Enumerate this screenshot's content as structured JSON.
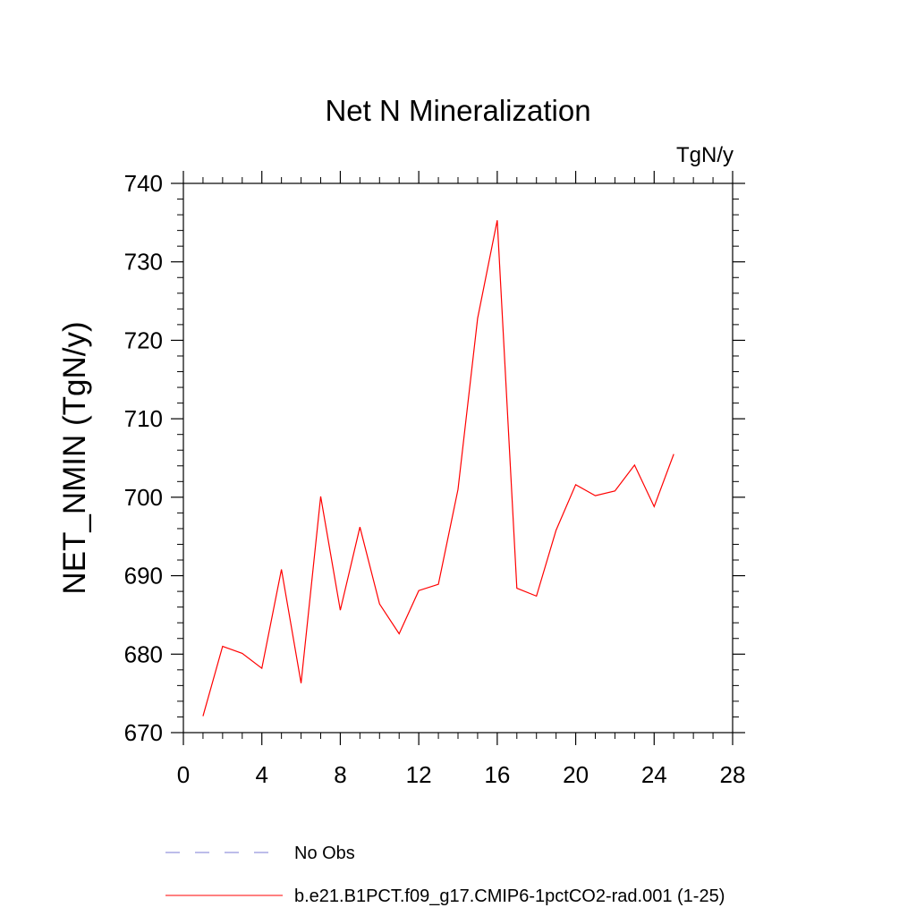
{
  "chart_data": {
    "type": "line",
    "title": "Net N Mineralization",
    "units_label": "TgN/y",
    "xlabel": "",
    "ylabel": "NET_NMIN  (TgN/y)",
    "xlim": [
      0,
      28
    ],
    "ylim": [
      670,
      740
    ],
    "x_ticks": [
      0,
      4,
      8,
      12,
      16,
      20,
      24,
      28
    ],
    "y_ticks": [
      670,
      680,
      690,
      700,
      710,
      720,
      730,
      740
    ],
    "x_tick_labels": [
      "0",
      "4",
      "8",
      "12",
      "16",
      "20",
      "24",
      "28"
    ],
    "y_tick_labels": [
      "670",
      "680",
      "690",
      "700",
      "710",
      "720",
      "730",
      "740"
    ],
    "grid": false,
    "legend_position": "bottom",
    "series": [
      {
        "name": "No Obs",
        "color": "#7b7bd6",
        "dash": "dashed",
        "x": [],
        "values": []
      },
      {
        "name": "b.e21.B1PCT.f09_g17.CMIP6-1pctCO2-rad.001 (1-25)",
        "color": "#ff0000",
        "dash": "solid",
        "x": [
          1,
          2,
          3,
          4,
          5,
          6,
          7,
          8,
          9,
          10,
          11,
          12,
          13,
          14,
          15,
          16,
          17,
          18,
          19,
          20,
          21,
          22,
          23,
          24,
          25
        ],
        "values": [
          672.1,
          681.0,
          680.1,
          678.2,
          690.8,
          676.3,
          700.1,
          685.6,
          696.2,
          686.4,
          682.6,
          688.1,
          688.9,
          701.0,
          722.8,
          735.3,
          688.4,
          687.4,
          695.8,
          701.6,
          700.2,
          700.8,
          704.1,
          698.8,
          705.5
        ]
      }
    ]
  }
}
